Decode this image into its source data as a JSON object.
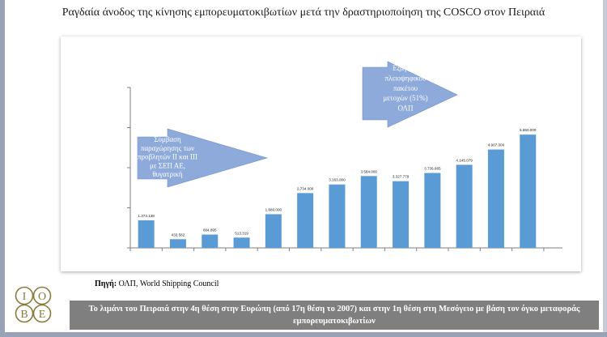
{
  "title": "Ραγδαία άνοδος της κίνησης εμπορευματοκιβωτίων μετά την δραστηριοποίηση της COSCO στον Πειραιά",
  "source_label": "Πηγή:",
  "source_text": " ΟΛΠ, World Shipping Council",
  "banner": "Το λιμάνι του Πειραιά στην 4η θέση στην Ευρώπη (από 17η θέση το 2007) και στην 1η θέση στη Μεσόγειο με βάση τον όγκο μεταφοράς εμπορευματοκιβωτίων",
  "logo": {
    "letters": [
      "Ι",
      "Ο",
      "Β",
      "Ε"
    ],
    "color": "#8a7a3a"
  },
  "arrows": [
    {
      "lines": [
        "Σύμβαση",
        "παραχώρησης των",
        "προβλητών ΙΙ και ΙΙΙ",
        "με ΣΕΠ ΑΕ,",
        "θυγατρική"
      ]
    },
    {
      "lines": [
        "Εξαγορά",
        "πλειοψηφικού",
        "πακέτου",
        "μετοχών (51%)",
        "ΟΛΠ"
      ]
    }
  ],
  "chart_data": {
    "type": "bar",
    "values": [
      1373138,
      433582,
      664895,
      513319,
      1680000,
      2734000,
      3163000,
      3584000,
      3327779,
      3736665,
      4145079,
      4907000,
      5650000
    ],
    "labels": [
      "1.373.138",
      "433.582",
      "664.895",
      "513.319",
      "1.680.000",
      "2.734.000",
      "3.163.000",
      "3.584.000",
      "3.327.779",
      "3.736.665",
      "4.145.079",
      "4.907.000",
      "5.650.000"
    ],
    "ylim": [
      0,
      8000000
    ],
    "yticks": [
      0,
      2000000,
      4000000,
      6000000,
      8000000
    ],
    "bar_color": "#5b9bd5",
    "arrow_color": "#8eaadb",
    "grid": false
  }
}
